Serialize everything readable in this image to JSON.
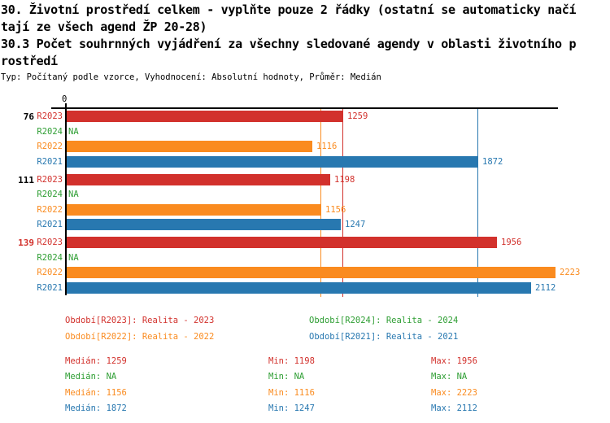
{
  "header": {
    "title_line1": "30. Životní prostředí celkem - vyplňte pouze 2 řádky (ostatní se automaticky načí",
    "title_line2": "tají ze všech agend ŽP 20-28)",
    "subtitle_line1": "30.3 Počet souhrnných vyjádření za všechny sledované agendy v oblasti životního p",
    "subtitle_line2": "rostředí",
    "meta": "Typ: Počítaný podle vzorce, Vyhodnocení: Absolutní hodnoty, Průměr: Medián"
  },
  "colors": {
    "R2023": "#d2312c",
    "R2024": "#2e9e33",
    "R2022": "#fa8b1f",
    "R2021": "#2878b0",
    "axis": "#000000"
  },
  "chart_data": {
    "type": "bar",
    "orientation": "horizontal",
    "title": "30.3 Počet souhrnných vyjádření za všechny sledované agendy v oblasti životního prostředí",
    "x_axis": {
      "origin_tick_label": "0",
      "xlim": [
        0,
        2240
      ],
      "gridlines": false
    },
    "na_label": "NA",
    "series_order": [
      "R2023",
      "R2024",
      "R2022",
      "R2021"
    ],
    "groups": [
      {
        "label": "76",
        "label_color": "#000000",
        "values": {
          "R2023": 1259,
          "R2024": null,
          "R2022": 1116,
          "R2021": 1872
        }
      },
      {
        "label": "111",
        "label_color": "#000000",
        "values": {
          "R2023": 1198,
          "R2024": null,
          "R2022": 1156,
          "R2021": 1247
        }
      },
      {
        "label": "139",
        "label_color": "#d2312c",
        "values": {
          "R2023": 1956,
          "R2024": null,
          "R2022": 2223,
          "R2021": 2112
        }
      }
    ],
    "median_reference_lines": [
      {
        "series": "R2022",
        "value": 1156
      },
      {
        "series": "R2023",
        "value": 1259
      },
      {
        "series": "R2021",
        "value": 1872
      }
    ]
  },
  "legend": {
    "items": [
      {
        "series": "R2023",
        "label": "Období[R2023]: Realita - 2023"
      },
      {
        "series": "R2024",
        "label": "Období[R2024]: Realita - 2024"
      },
      {
        "series": "R2022",
        "label": "Období[R2022]: Realita - 2022"
      },
      {
        "series": "R2021",
        "label": "Období[R2021]: Realita - 2021"
      }
    ]
  },
  "stats": {
    "median_label": "Medián",
    "min_label": "Min",
    "max_label": "Max",
    "rows": [
      {
        "series": "R2023",
        "median": "1259",
        "min": "1198",
        "max": "1956"
      },
      {
        "series": "R2024",
        "median": "NA",
        "min": "NA",
        "max": "NA"
      },
      {
        "series": "R2022",
        "median": "1156",
        "min": "1116",
        "max": "2223"
      },
      {
        "series": "R2021",
        "median": "1872",
        "min": "1247",
        "max": "2112"
      }
    ]
  }
}
